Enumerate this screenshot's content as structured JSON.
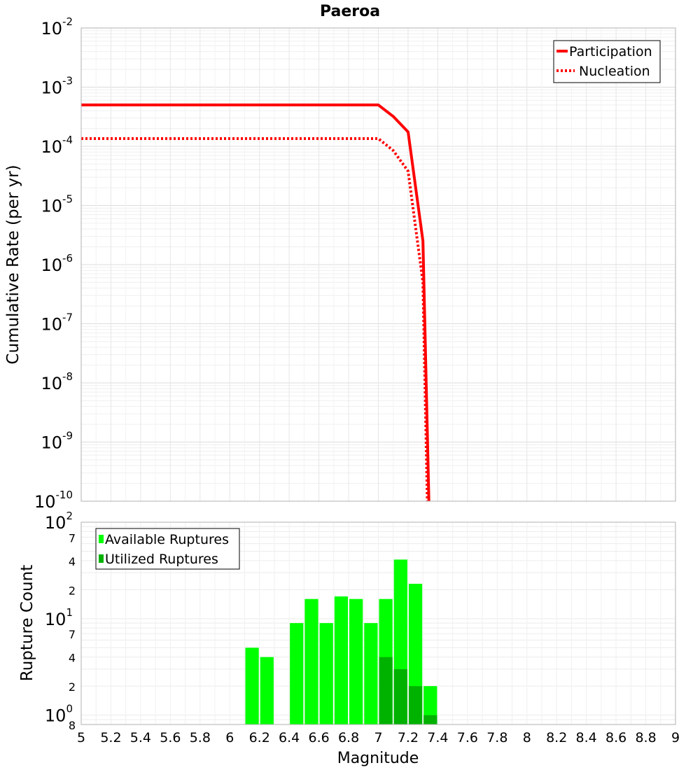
{
  "chart_data": [
    {
      "type": "line",
      "title": "Paeroa",
      "ylabel": "Cumulative Rate (per yr)",
      "xlabel": "Magnitude",
      "yscale": "log",
      "ylim_exponents": [
        -10,
        -2
      ],
      "xlim": [
        5,
        9
      ],
      "grid": true,
      "legend_position": "top-right",
      "y_tick_exponents": [
        "-2",
        "-3",
        "-4",
        "-5",
        "-6",
        "-7",
        "-8",
        "-9",
        "-10"
      ],
      "series": [
        {
          "name": "Participation",
          "color": "#ff0000",
          "style": "solid",
          "x": [
            5.0,
            7.0,
            7.1,
            7.2,
            7.3,
            7.34
          ],
          "y": [
            0.0005,
            0.0005,
            0.00032,
            0.000175,
            2.5e-06,
            1e-10
          ]
        },
        {
          "name": "Nucleation",
          "color": "#ff0000",
          "style": "dotted",
          "x": [
            5.0,
            7.0,
            7.1,
            7.2,
            7.3,
            7.33
          ],
          "y": [
            0.000135,
            0.000135,
            8.5e-05,
            3.8e-05,
            5e-07,
            1e-10
          ]
        }
      ]
    },
    {
      "type": "bar",
      "ylabel": "Rupture Count",
      "xlabel": "Magnitude",
      "yscale": "log",
      "ylim": [
        0.8,
        100
      ],
      "xlim": [
        5,
        9
      ],
      "legend_position": "top-left",
      "x_ticks": [
        "5",
        "5.2",
        "5.4",
        "5.6",
        "5.8",
        "6",
        "6.2",
        "6.4",
        "6.6",
        "6.8",
        "7",
        "7.2",
        "7.4",
        "7.6",
        "7.8",
        "8",
        "8.2",
        "8.4",
        "8.6",
        "8.8",
        "9"
      ],
      "y_major_ticks": [
        {
          "value": 100,
          "base": "10",
          "exp": "2"
        },
        {
          "value": 10,
          "base": "10",
          "exp": "1"
        },
        {
          "value": 1,
          "base": "10",
          "exp": "0"
        }
      ],
      "y_minor_ticks": [
        {
          "value": 70,
          "label": "7"
        },
        {
          "value": 40,
          "label": "4"
        },
        {
          "value": 20,
          "label": "2"
        },
        {
          "value": 7,
          "label": "7"
        },
        {
          "value": 4,
          "label": "4"
        },
        {
          "value": 2,
          "label": "2"
        },
        {
          "value": 0.8,
          "label": "8"
        }
      ],
      "bin_width": 0.1,
      "series": [
        {
          "name": "Available Ruptures",
          "color": "#00ff00",
          "x": [
            6.15,
            6.25,
            6.45,
            6.55,
            6.65,
            6.75,
            6.85,
            6.95,
            7.05,
            7.15,
            7.25,
            7.35
          ],
          "values": [
            5,
            4,
            9,
            16,
            9,
            17,
            16,
            9,
            16,
            41,
            23,
            2
          ]
        },
        {
          "name": "Utilized Ruptures",
          "color": "#00b200",
          "x": [
            7.05,
            7.15,
            7.25,
            7.35
          ],
          "values": [
            4,
            3,
            2,
            1
          ]
        }
      ]
    }
  ]
}
